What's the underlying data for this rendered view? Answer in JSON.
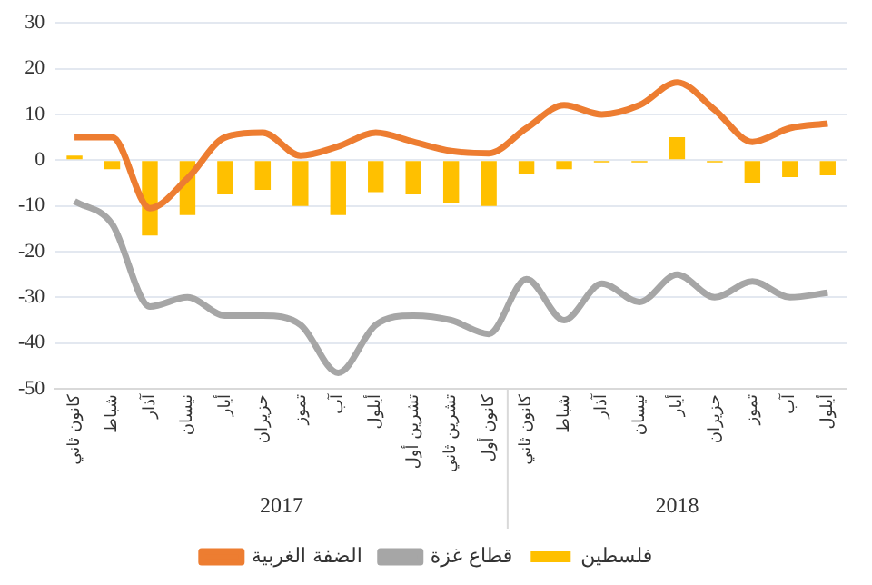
{
  "chart_data": {
    "type": "bar",
    "categories": [
      "كانون ثاني",
      "شباط",
      "آذار",
      "نيسان",
      "أيار",
      "حزيران",
      "تموز",
      "آب",
      "أيلول",
      "تشرين أول",
      "تشرين ثاني",
      "كانون أول",
      "كانون ثاني",
      "شباط",
      "آذار",
      "نيسان",
      "أيار",
      "حزيران",
      "تموز",
      "آب",
      "أيلول"
    ],
    "series": [
      {
        "name": "فلسطين",
        "color": "#ffc000",
        "values": [
          1,
          -2,
          -16.5,
          -12,
          -7.5,
          -6.5,
          -10,
          -12,
          -7,
          -7.5,
          -9.5,
          -10,
          -3,
          -2,
          -0.5,
          -0.5,
          5,
          -0.5,
          -5,
          -3.7,
          -3.3
        ]
      },
      {
        "name": "الضفة الغربية",
        "type": "line",
        "color": "#ed7d31",
        "values": [
          5,
          5,
          -10.5,
          -4,
          5,
          6,
          1,
          3,
          6,
          4,
          2,
          1.5,
          7,
          12,
          10,
          12,
          17,
          11,
          4,
          7,
          8
        ]
      },
      {
        "name": "قطاع غزة",
        "type": "line",
        "color": "#a6a6a6",
        "values": [
          -9,
          -14,
          -32,
          -30,
          -34,
          -34,
          -36,
          -46.5,
          -36,
          -34,
          -35,
          -38,
          -26,
          -35,
          -27,
          -31,
          -25,
          -30,
          -26.5,
          -30,
          -29
        ]
      }
    ],
    "ylim": [
      -50,
      30
    ],
    "yticks": [
      -50,
      -40,
      -30,
      -20,
      -10,
      0,
      10,
      20,
      30
    ],
    "annotations": [
      "2017",
      "2018"
    ],
    "grid": "y",
    "legend": "bottom",
    "marker": "none",
    "line_style": "solid"
  }
}
